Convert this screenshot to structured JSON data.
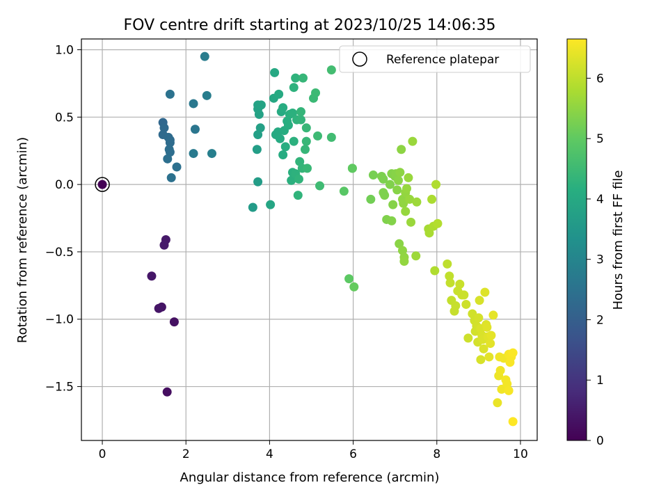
{
  "chart_data": {
    "type": "scatter",
    "title": "FOV centre drift starting at 2023/10/25 14:06:35",
    "xlabel": "Angular distance from reference (arcmin)",
    "ylabel": "Rotation from reference (arcmin)",
    "xlim": [
      -0.5,
      10.4
    ],
    "ylim": [
      -1.9,
      1.08
    ],
    "xticks": [
      0,
      2,
      4,
      6,
      8,
      10
    ],
    "xtick_labels": [
      "0",
      "2",
      "4",
      "6",
      "8",
      "10"
    ],
    "yticks": [
      1.0,
      0.5,
      0.0,
      -0.5,
      -1.0,
      -1.5
    ],
    "ytick_labels": [
      "1.0",
      "0.5",
      "0.0",
      "−0.5",
      "−1.0",
      "−1.5"
    ],
    "grid": true,
    "legend": {
      "position": "upper right",
      "label": "Reference platepar",
      "marker": "open circle"
    },
    "reference_point": {
      "x": 0,
      "y": 0
    },
    "colorbar": {
      "label": "Hours from first FF file",
      "colormap": "viridis",
      "range": [
        0,
        6.65
      ],
      "ticks": [
        0,
        1,
        2,
        3,
        4,
        5,
        6
      ],
      "tick_labels": [
        "0",
        "1",
        "2",
        "3",
        "4",
        "5",
        "6"
      ]
    },
    "points": [
      [
        0,
        0,
        0.02
      ],
      [
        1.55,
        -1.54,
        0.25
      ],
      [
        1.72,
        -1.02,
        0.3
      ],
      [
        1.42,
        -0.91,
        0.35
      ],
      [
        1.35,
        -0.92,
        0.38
      ],
      [
        1.18,
        -0.68,
        0.4
      ],
      [
        1.52,
        -0.41,
        0.45
      ],
      [
        1.48,
        -0.45,
        0.48
      ],
      [
        1.45,
        0.46,
        2.2
      ],
      [
        1.48,
        0.42,
        2.25
      ],
      [
        1.45,
        0.37,
        2.28
      ],
      [
        1.58,
        0.35,
        2.3
      ],
      [
        1.62,
        0.33,
        2.32
      ],
      [
        1.62,
        0.31,
        2.35
      ],
      [
        1.6,
        0.26,
        2.38
      ],
      [
        1.62,
        0.24,
        2.4
      ],
      [
        1.56,
        0.19,
        2.42
      ],
      [
        1.78,
        0.13,
        2.45
      ],
      [
        1.65,
        0.05,
        2.48
      ],
      [
        1.62,
        0.67,
        2.5
      ],
      [
        2.22,
        0.41,
        2.6
      ],
      [
        2.18,
        0.6,
        2.65
      ],
      [
        2.18,
        0.23,
        2.7
      ],
      [
        2.45,
        0.95,
        2.75
      ],
      [
        2.5,
        0.66,
        2.8
      ],
      [
        2.62,
        0.23,
        2.85
      ],
      [
        3.6,
        -0.17,
        3.6
      ],
      [
        3.72,
        0.02,
        3.65
      ],
      [
        3.7,
        0.26,
        3.7
      ],
      [
        3.72,
        0.37,
        3.72
      ],
      [
        3.78,
        0.42,
        3.75
      ],
      [
        3.75,
        0.52,
        3.78
      ],
      [
        3.72,
        0.56,
        3.8
      ],
      [
        3.72,
        0.59,
        3.82
      ],
      [
        3.8,
        0.59,
        3.85
      ],
      [
        4.02,
        -0.15,
        3.9
      ],
      [
        4.1,
        0.64,
        3.95
      ],
      [
        4.12,
        0.83,
        3.98
      ],
      [
        4.15,
        0.37,
        4.0
      ],
      [
        4.2,
        0.39,
        4.0
      ],
      [
        4.22,
        0.67,
        4.02
      ],
      [
        4.25,
        0.34,
        4.05
      ],
      [
        4.28,
        0.54,
        4.05
      ],
      [
        4.32,
        0.22,
        4.08
      ],
      [
        4.32,
        0.57,
        4.1
      ],
      [
        4.35,
        0.4,
        4.1
      ],
      [
        4.38,
        0.28,
        4.12
      ],
      [
        4.42,
        0.47,
        4.15
      ],
      [
        4.45,
        0.44,
        4.15
      ],
      [
        4.48,
        0.52,
        4.18
      ],
      [
        4.52,
        0.03,
        4.2
      ],
      [
        4.55,
        0.09,
        4.2
      ],
      [
        4.55,
        0.53,
        4.22
      ],
      [
        4.58,
        0.32,
        4.22
      ],
      [
        4.58,
        0.72,
        4.25
      ],
      [
        4.62,
        0.08,
        4.25
      ],
      [
        4.62,
        0.79,
        4.28
      ],
      [
        4.65,
        0.48,
        4.28
      ],
      [
        4.68,
        -0.08,
        4.3
      ],
      [
        4.7,
        0.04,
        4.3
      ],
      [
        4.72,
        0.17,
        4.32
      ],
      [
        4.75,
        0.48,
        4.32
      ],
      [
        4.75,
        0.54,
        4.35
      ],
      [
        4.78,
        0.12,
        4.35
      ],
      [
        4.8,
        0.79,
        4.38
      ],
      [
        4.85,
        0.26,
        4.38
      ],
      [
        4.88,
        0.32,
        4.4
      ],
      [
        4.88,
        0.42,
        4.4
      ],
      [
        4.9,
        0.12,
        4.42
      ],
      [
        5.05,
        0.64,
        4.45
      ],
      [
        5.1,
        0.68,
        4.48
      ],
      [
        5.15,
        0.36,
        4.5
      ],
      [
        5.2,
        -0.01,
        4.52
      ],
      [
        5.48,
        0.35,
        4.55
      ],
      [
        5.48,
        0.85,
        4.58
      ],
      [
        5.78,
        -0.05,
        4.9
      ],
      [
        5.9,
        -0.7,
        4.95
      ],
      [
        5.98,
        0.12,
        5.0
      ],
      [
        5.98,
        0.12,
        5.0
      ],
      [
        6.02,
        -0.76,
        5.05
      ],
      [
        6.42,
        -0.11,
        5.2
      ],
      [
        6.48,
        0.07,
        5.25
      ],
      [
        6.68,
        0.06,
        5.3
      ],
      [
        6.72,
        0.04,
        5.3
      ],
      [
        6.72,
        -0.06,
        5.32
      ],
      [
        6.75,
        -0.08,
        5.32
      ],
      [
        6.8,
        -0.26,
        5.35
      ],
      [
        6.88,
        0.0,
        5.35
      ],
      [
        6.92,
        -0.27,
        5.38
      ],
      [
        6.92,
        0.08,
        5.38
      ],
      [
        6.95,
        -0.15,
        5.4
      ],
      [
        7.0,
        0.06,
        5.4
      ],
      [
        7.02,
        0.08,
        5.42
      ],
      [
        7.05,
        -0.04,
        5.42
      ],
      [
        7.08,
        0.03,
        5.45
      ],
      [
        7.1,
        -0.44,
        5.45
      ],
      [
        7.12,
        0.09,
        5.48
      ],
      [
        7.15,
        0.26,
        5.48
      ],
      [
        7.18,
        -0.11,
        5.5
      ],
      [
        7.18,
        -0.49,
        5.5
      ],
      [
        7.2,
        -0.14,
        5.52
      ],
      [
        7.22,
        -0.54,
        5.52
      ],
      [
        7.22,
        -0.57,
        5.55
      ],
      [
        7.25,
        -0.06,
        5.55
      ],
      [
        7.25,
        -0.2,
        5.58
      ],
      [
        7.28,
        -0.03,
        5.58
      ],
      [
        7.32,
        0.05,
        5.6
      ],
      [
        7.35,
        -0.11,
        5.6
      ],
      [
        7.38,
        -0.28,
        5.62
      ],
      [
        7.42,
        0.32,
        5.62
      ],
      [
        7.5,
        -0.53,
        5.65
      ],
      [
        7.52,
        -0.13,
        5.65
      ],
      [
        7.8,
        -0.33,
        5.75
      ],
      [
        7.82,
        -0.36,
        5.78
      ],
      [
        7.88,
        -0.11,
        5.8
      ],
      [
        7.92,
        -0.31,
        5.82
      ],
      [
        7.95,
        -0.64,
        5.85
      ],
      [
        7.98,
        0.0,
        5.85
      ],
      [
        8.02,
        -0.29,
        5.88
      ],
      [
        8.25,
        -0.59,
        6.0
      ],
      [
        8.3,
        -0.68,
        6.02
      ],
      [
        8.32,
        -0.73,
        6.05
      ],
      [
        8.35,
        -0.86,
        6.05
      ],
      [
        8.42,
        -0.94,
        6.08
      ],
      [
        8.45,
        -0.9,
        6.08
      ],
      [
        8.5,
        -0.79,
        6.1
      ],
      [
        8.55,
        -0.74,
        6.1
      ],
      [
        8.6,
        -0.82,
        6.12
      ],
      [
        8.65,
        -0.82,
        6.12
      ],
      [
        8.7,
        -0.89,
        6.15
      ],
      [
        8.75,
        -1.14,
        6.15
      ],
      [
        8.85,
        -0.96,
        6.18
      ],
      [
        8.9,
        -1.01,
        6.18
      ],
      [
        8.92,
        -1.09,
        6.2
      ],
      [
        8.95,
        -1.05,
        6.2
      ],
      [
        8.98,
        -1.17,
        6.22
      ],
      [
        9.0,
        -0.99,
        6.22
      ],
      [
        9.02,
        -0.86,
        6.25
      ],
      [
        9.05,
        -1.3,
        6.25
      ],
      [
        9.05,
        -1.07,
        6.28
      ],
      [
        9.08,
        -1.12,
        6.28
      ],
      [
        9.1,
        -1.15,
        6.3
      ],
      [
        9.12,
        -1.22,
        6.3
      ],
      [
        9.15,
        -0.8,
        6.32
      ],
      [
        9.18,
        -1.04,
        6.32
      ],
      [
        9.2,
        -1.06,
        6.35
      ],
      [
        9.22,
        -1.13,
        6.35
      ],
      [
        9.25,
        -1.28,
        6.38
      ],
      [
        9.28,
        -1.18,
        6.38
      ],
      [
        9.3,
        -1.12,
        6.4
      ],
      [
        9.35,
        -0.97,
        6.4
      ],
      [
        9.45,
        -1.62,
        6.45
      ],
      [
        9.48,
        -1.42,
        6.48
      ],
      [
        9.5,
        -1.28,
        6.5
      ],
      [
        9.52,
        -1.38,
        6.5
      ],
      [
        9.55,
        -1.52,
        6.52
      ],
      [
        9.6,
        -1.29,
        6.52
      ],
      [
        9.65,
        -1.45,
        6.55
      ],
      [
        9.68,
        -1.48,
        6.55
      ],
      [
        9.72,
        -1.53,
        6.58
      ],
      [
        9.72,
        -1.26,
        6.58
      ],
      [
        9.75,
        -1.32,
        6.6
      ],
      [
        9.78,
        -1.28,
        6.6
      ],
      [
        9.82,
        -1.25,
        6.62
      ],
      [
        9.82,
        -1.76,
        6.65
      ]
    ]
  }
}
